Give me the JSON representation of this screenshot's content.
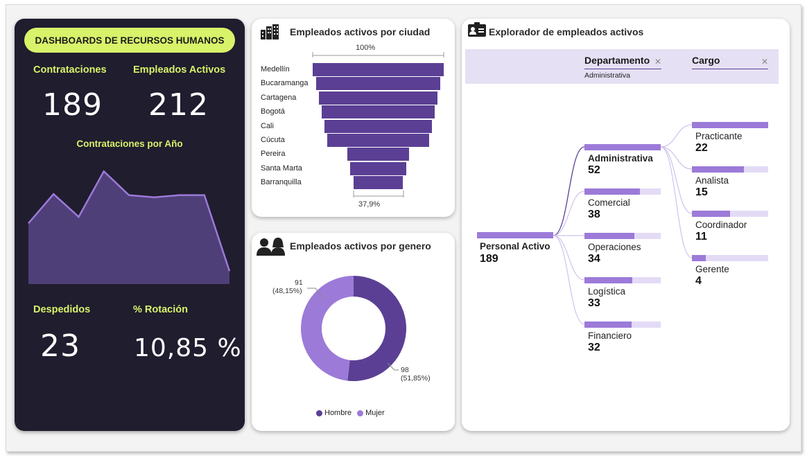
{
  "dashboard_title": "DASHBOARDS DE RECURSOS HUMANOS",
  "kpis": {
    "hires": {
      "label": "Contrataciones",
      "value": "189"
    },
    "active": {
      "label": "Empleados Activos",
      "value": "212"
    },
    "fired": {
      "label": "Despedidos",
      "value": "23"
    },
    "turnover": {
      "label": "% Rotación",
      "value": "10,85 %"
    }
  },
  "hires_by_year": {
    "title": "Contrataciones por Año",
    "values": [
      56,
      83,
      62,
      104,
      82,
      80,
      82,
      82,
      12
    ],
    "ylim": [
      0,
      115
    ]
  },
  "city_chart": {
    "title": "Empleados activos por ciudad",
    "top_label": "100%",
    "bottom_label": "37,9%",
    "icon": "building-icon"
  },
  "chart_data": [
    {
      "type": "bar",
      "title": "Empleados activos por ciudad",
      "categories": [
        "Medellín",
        "Bucaramanga",
        "Cartagena",
        "Bogotá",
        "Cali",
        "Cúcuta",
        "Pereira",
        "Santa Marta",
        "Barranquilla"
      ],
      "values": [
        100,
        95,
        91,
        86,
        82,
        78,
        47,
        43,
        37.9
      ],
      "unit": "%"
    },
    {
      "type": "pie",
      "title": "Empleados activos por genero",
      "labels": [
        "Hombre",
        "Mujer"
      ],
      "values": [
        98,
        91
      ],
      "percent_labels": [
        "(51,85%)",
        "(48,15%)"
      ],
      "colors": [
        "#5b3f94",
        "#9c7ad8"
      ]
    }
  ],
  "gender_chart": {
    "title": "Empleados activos por genero",
    "icon": "people-icon",
    "labels": [
      {
        "value": "98",
        "percent": "(51,85%)"
      },
      {
        "value": "91",
        "percent": "(48,15%)"
      }
    ],
    "legend": [
      "Hombre",
      "Mujer"
    ]
  },
  "explorer": {
    "title": "Explorador de empleados activos",
    "icon": "id-card-icon",
    "filters": [
      {
        "label": "Departamento",
        "value": "Administrativa"
      },
      {
        "label": "Cargo",
        "value": ""
      }
    ],
    "root": {
      "label": "Personal Activo",
      "value": "189"
    },
    "departments": [
      {
        "label": "Administrativa",
        "value": "52",
        "fraction": 1.0
      },
      {
        "label": "Comercial",
        "value": "38",
        "fraction": 0.73
      },
      {
        "label": "Operaciones",
        "value": "34",
        "fraction": 0.65
      },
      {
        "label": "Logística",
        "value": "33",
        "fraction": 0.63
      },
      {
        "label": "Financiero",
        "value": "32",
        "fraction": 0.62
      }
    ],
    "roles": [
      {
        "label": "Practicante",
        "value": "22",
        "fraction": 1.0
      },
      {
        "label": "Analista",
        "value": "15",
        "fraction": 0.68
      },
      {
        "label": "Coordinador",
        "value": "11",
        "fraction": 0.5
      },
      {
        "label": "Gerente",
        "value": "4",
        "fraction": 0.18
      }
    ]
  },
  "colors": {
    "accent_lime": "#d8f26a",
    "dark_panel": "#1f1d2e",
    "purple_dark": "#5b3f94",
    "purple_light": "#9c7ad8",
    "lavender": "#e6e0f4"
  }
}
